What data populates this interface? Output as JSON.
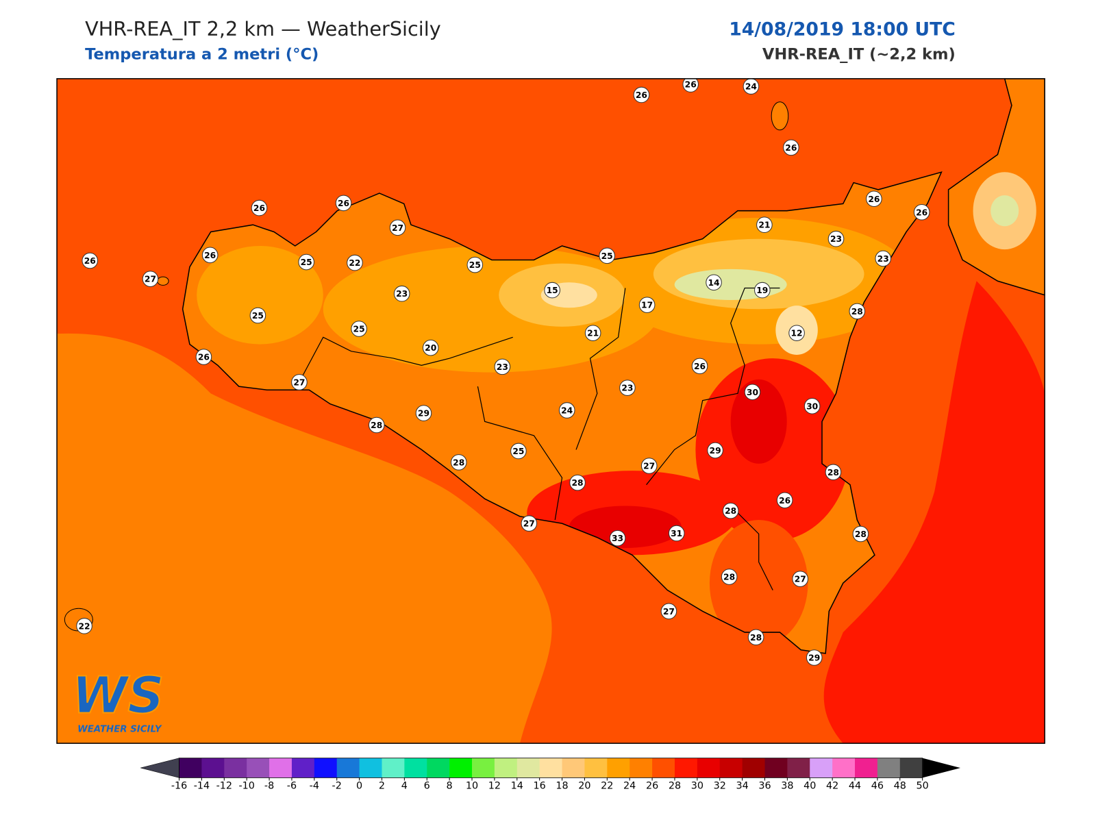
{
  "header": {
    "title": "VHR-REA_IT 2,2 km — WeatherSicily",
    "subtitle": "Temperatura a 2 metri (°C)",
    "datetime": "14/08/2019 18:00 UTC",
    "model": "VHR-REA_IT (~2,2 km)"
  },
  "logo": {
    "mark": "WS",
    "name": "WEATHER SICILY"
  },
  "stations": {
    "values": [
      26,
      26,
      24,
      26,
      26,
      26,
      27,
      26,
      27,
      26,
      25,
      22,
      25,
      25,
      21,
      23,
      26,
      26,
      23,
      23,
      15,
      14,
      19,
      17,
      25,
      25,
      21,
      12,
      28,
      26,
      20,
      23,
      26,
      27,
      23,
      30,
      30,
      24,
      29,
      28,
      25,
      29,
      28,
      27,
      28,
      28,
      26,
      28,
      27,
      31,
      33,
      28,
      28,
      27,
      27,
      28,
      29,
      22
    ]
  },
  "colorbar": {
    "ticks": [
      -16,
      -14,
      -12,
      -10,
      -8,
      -6,
      -4,
      -2,
      0,
      2,
      4,
      6,
      8,
      10,
      12,
      14,
      16,
      18,
      20,
      22,
      24,
      26,
      28,
      30,
      32,
      34,
      36,
      38,
      40,
      42,
      44,
      46,
      48,
      50
    ],
    "colors": [
      "#400060",
      "#5c1090",
      "#7a30a0",
      "#9850b8",
      "#e070e8",
      "#6020c8",
      "#1010ff",
      "#1878d8",
      "#10c0e0",
      "#60f0c8",
      "#00e0a0",
      "#00d860",
      "#00f000",
      "#78f040",
      "#c0f080",
      "#e0e8a0",
      "#ffe0a0",
      "#ffc878",
      "#ffc040",
      "#ffa000",
      "#ff8000",
      "#ff5000",
      "#ff1800",
      "#e80000",
      "#c80000",
      "#a00000",
      "#700020",
      "#802048",
      "#d8a0f8",
      "#ff70c8",
      "#f02090",
      "#808080",
      "#404040"
    ],
    "under_color": "#404050",
    "over_color": "#000000"
  }
}
